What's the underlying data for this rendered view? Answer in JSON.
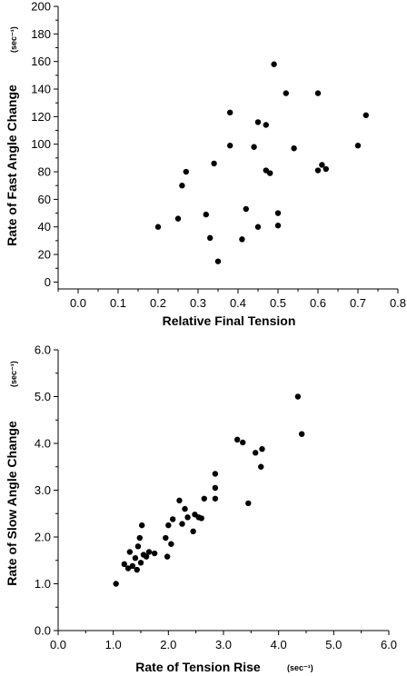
{
  "chart_data": [
    {
      "type": "scatter",
      "xlabel": "Relative Final Tension",
      "xunit": "",
      "ylabel": "Rate of Fast Angle Change",
      "yunit": "(sec⁻¹)",
      "xlim": [
        -0.05,
        0.8
      ],
      "ylim": [
        -5,
        200
      ],
      "xticks": [
        "0.0",
        "0.1",
        "0.2",
        "0.3",
        "0.4",
        "0.5",
        "0.6",
        "0.7",
        "0.8"
      ],
      "yticks": [
        "0",
        "20",
        "40",
        "60",
        "80",
        "100",
        "120",
        "140",
        "160",
        "180",
        "200"
      ],
      "grid": false,
      "series": [
        {
          "points": [
            [
              0.2,
              40
            ],
            [
              0.25,
              46
            ],
            [
              0.26,
              70
            ],
            [
              0.27,
              80
            ],
            [
              0.32,
              49
            ],
            [
              0.33,
              32
            ],
            [
              0.34,
              86
            ],
            [
              0.35,
              15
            ],
            [
              0.38,
              99
            ],
            [
              0.38,
              123
            ],
            [
              0.41,
              31
            ],
            [
              0.42,
              53
            ],
            [
              0.44,
              98
            ],
            [
              0.45,
              40
            ],
            [
              0.45,
              116
            ],
            [
              0.47,
              114
            ],
            [
              0.47,
              81
            ],
            [
              0.48,
              79
            ],
            [
              0.49,
              158
            ],
            [
              0.5,
              50
            ],
            [
              0.5,
              41
            ],
            [
              0.52,
              137
            ],
            [
              0.54,
              97
            ],
            [
              0.6,
              81
            ],
            [
              0.6,
              137
            ],
            [
              0.61,
              85
            ],
            [
              0.62,
              82
            ],
            [
              0.7,
              99
            ],
            [
              0.72,
              121
            ]
          ]
        }
      ]
    },
    {
      "type": "scatter",
      "xlabel": "Rate of Tension Rise",
      "xunit": "(sec⁻¹)",
      "ylabel": "Rate of Slow Angle Change",
      "yunit": "(sec⁻¹)",
      "xlim": [
        0.0,
        6.0
      ],
      "ylim": [
        0.0,
        6.0
      ],
      "xticks": [
        "0.0",
        "1.0",
        "2.0",
        "3.0",
        "4.0",
        "5.0",
        "6.0"
      ],
      "yticks": [
        "0.0",
        "1.0",
        "2.0",
        "3.0",
        "4.0",
        "5.0",
        "6.0"
      ],
      "grid": false,
      "series": [
        {
          "points": [
            [
              1.05,
              1.0
            ],
            [
              1.2,
              1.42
            ],
            [
              1.27,
              1.33
            ],
            [
              1.3,
              1.68
            ],
            [
              1.35,
              1.38
            ],
            [
              1.4,
              1.55
            ],
            [
              1.43,
              1.3
            ],
            [
              1.45,
              1.8
            ],
            [
              1.48,
              1.98
            ],
            [
              1.5,
              1.45
            ],
            [
              1.52,
              2.25
            ],
            [
              1.55,
              1.62
            ],
            [
              1.6,
              1.58
            ],
            [
              1.65,
              1.68
            ],
            [
              1.75,
              1.65
            ],
            [
              1.95,
              1.98
            ],
            [
              1.98,
              1.58
            ],
            [
              2.0,
              2.25
            ],
            [
              2.05,
              1.85
            ],
            [
              2.08,
              2.38
            ],
            [
              2.2,
              2.78
            ],
            [
              2.25,
              2.28
            ],
            [
              2.3,
              2.6
            ],
            [
              2.35,
              2.42
            ],
            [
              2.45,
              2.12
            ],
            [
              2.48,
              2.48
            ],
            [
              2.55,
              2.42
            ],
            [
              2.6,
              2.4
            ],
            [
              2.65,
              2.82
            ],
            [
              2.85,
              2.82
            ],
            [
              2.85,
              3.05
            ],
            [
              2.85,
              3.35
            ],
            [
              3.25,
              4.08
            ],
            [
              3.35,
              4.02
            ],
            [
              3.45,
              2.72
            ],
            [
              3.58,
              3.8
            ],
            [
              3.68,
              3.5
            ],
            [
              3.7,
              3.88
            ],
            [
              4.35,
              5.0
            ],
            [
              4.42,
              4.2
            ]
          ]
        }
      ]
    }
  ]
}
